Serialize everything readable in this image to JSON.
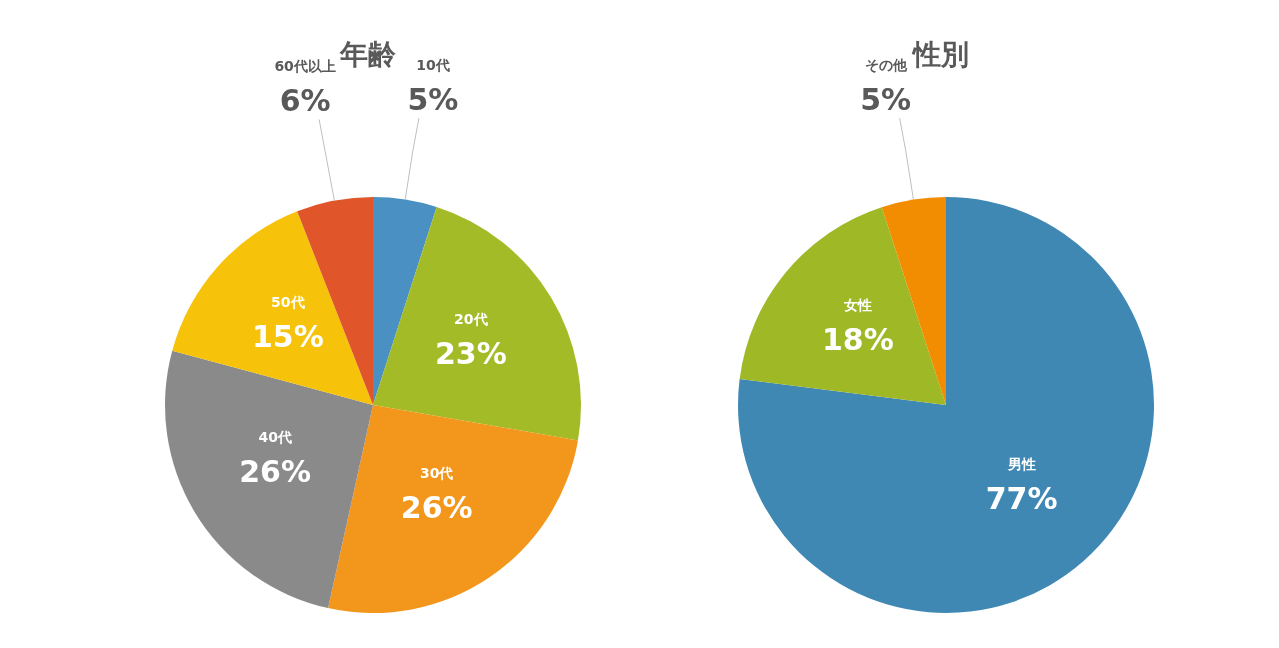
{
  "chart_data": [
    {
      "type": "pie",
      "title": "年齢",
      "categories": [
        "10代",
        "20代",
        "30代",
        "40代",
        "50代",
        "60代以上"
      ],
      "values": [
        5,
        23,
        26,
        26,
        15,
        6
      ],
      "value_labels": [
        "5%",
        "23%",
        "26%",
        "26%",
        "15%",
        "6%"
      ],
      "colors": [
        "#4a90c2",
        "#a3bb27",
        "#f3961c",
        "#8a8a8a",
        "#f6c30a",
        "#e0562a"
      ]
    },
    {
      "type": "pie",
      "title": "性別",
      "categories": [
        "男性",
        "女性",
        "その他"
      ],
      "values": [
        77,
        18,
        5
      ],
      "value_labels": [
        "77%",
        "18%",
        "5%"
      ],
      "colors": [
        "#3f88b4",
        "#9fb826",
        "#f28c00"
      ]
    }
  ]
}
